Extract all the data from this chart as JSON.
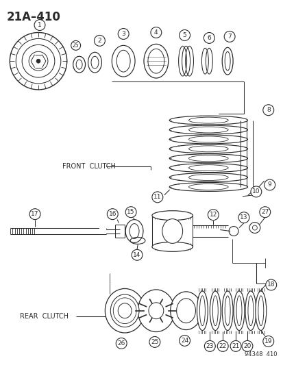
{
  "title": "21A–410",
  "watermark": "94348  410",
  "front_clutch_label": "FRONT  CLUTCH",
  "rear_clutch_label": "REAR  CLUTCH",
  "bg_color": "#ffffff",
  "line_color": "#2a2a2a",
  "figsize": [
    4.14,
    5.33
  ],
  "dpi": 100
}
